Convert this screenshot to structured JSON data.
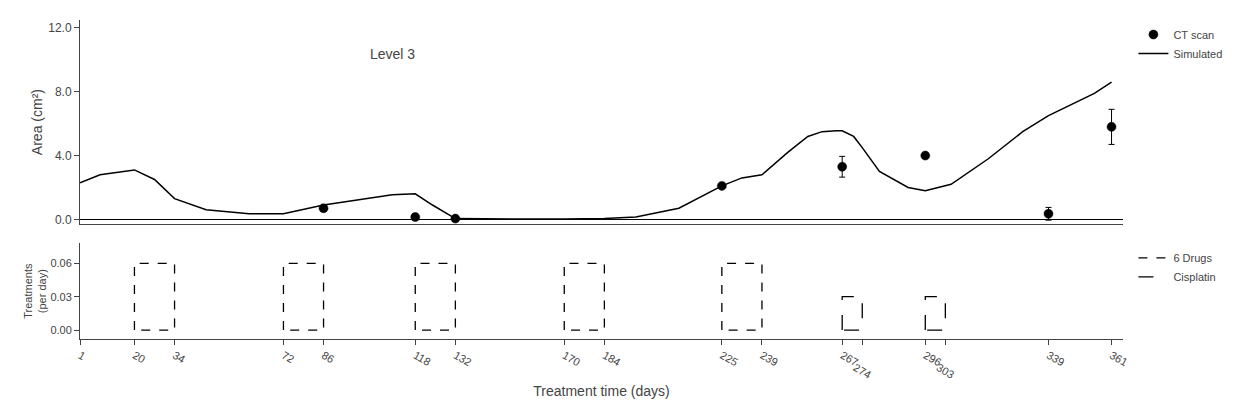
{
  "chart_data": [
    {
      "type": "line",
      "title": "Level 3",
      "y_label": "Area (cm²)",
      "xlim": [
        1,
        365
      ],
      "ylim": [
        -0.3,
        12.5
      ],
      "yticks": [
        {
          "value": 0.0,
          "label": "0.0"
        },
        {
          "value": 4.0,
          "label": "4.0"
        },
        {
          "value": 8.0,
          "label": "8.0"
        },
        {
          "value": 12.0,
          "label": "12.0"
        }
      ],
      "tick_labels": "y",
      "grid": false,
      "legend": "upper right",
      "series": [
        {
          "name": "CT scan",
          "type": "scatter",
          "marker": "circle",
          "color": "#000000",
          "x": [
            86,
            118,
            132,
            225,
            267,
            296,
            339,
            361
          ],
          "values": [
            0.7,
            0.15,
            0.05,
            2.1,
            3.3,
            4.0,
            0.35,
            5.8
          ],
          "errors": [
            0.0,
            0.0,
            0.0,
            0.0,
            0.65,
            0.0,
            0.4,
            1.1
          ]
        },
        {
          "name": "Simulated",
          "type": "line",
          "line_style": "solid",
          "color": "#000000",
          "x": [
            1,
            8,
            20,
            27,
            34,
            45,
            60,
            72,
            86,
            100,
            110,
            118,
            124,
            132,
            145,
            160,
            170,
            184,
            195,
            210,
            225,
            232,
            239,
            248,
            255,
            260,
            265,
            267,
            271,
            274,
            280,
            290,
            296,
            305,
            318,
            330,
            339,
            348,
            355,
            361
          ],
          "values": [
            2.3,
            2.8,
            3.1,
            2.5,
            1.3,
            0.6,
            0.35,
            0.35,
            0.9,
            1.3,
            1.55,
            1.6,
            0.9,
            0.05,
            0.02,
            0.02,
            0.02,
            0.05,
            0.15,
            0.7,
            2.1,
            2.6,
            2.8,
            4.2,
            5.2,
            5.5,
            5.55,
            5.55,
            5.2,
            4.5,
            3.0,
            2.0,
            1.8,
            2.2,
            3.8,
            5.5,
            6.5,
            7.3,
            7.9,
            8.6
          ]
        }
      ]
    },
    {
      "type": "intervals",
      "x_label": "Treatment time (days)",
      "y_label": "Treatments\n(per day)",
      "xlim": [
        1,
        365
      ],
      "ylim": [
        -0.008,
        0.078
      ],
      "xticks": [
        1,
        20,
        34,
        72,
        86,
        118,
        132,
        170,
        184,
        225,
        239,
        267,
        274,
        296,
        303,
        339,
        361
      ],
      "yticks": [
        {
          "value": 0.0,
          "label": "0.00"
        },
        {
          "value": 0.03,
          "label": "0.03"
        },
        {
          "value": 0.06,
          "label": "0.06"
        }
      ],
      "grid": false,
      "legend": "upper right",
      "series": [
        {
          "name": "6 Drugs",
          "line_style": "dash",
          "color": "#000000",
          "level": 0.06,
          "intervals": [
            [
              20,
              34
            ],
            [
              72,
              86
            ],
            [
              118,
              132
            ],
            [
              170,
              184
            ],
            [
              225,
              239
            ]
          ]
        },
        {
          "name": "Cisplatin",
          "line_style": "longdash",
          "color": "#000000",
          "level": 0.03,
          "intervals": [
            [
              267,
              274
            ],
            [
              296,
              303
            ]
          ]
        }
      ]
    }
  ]
}
